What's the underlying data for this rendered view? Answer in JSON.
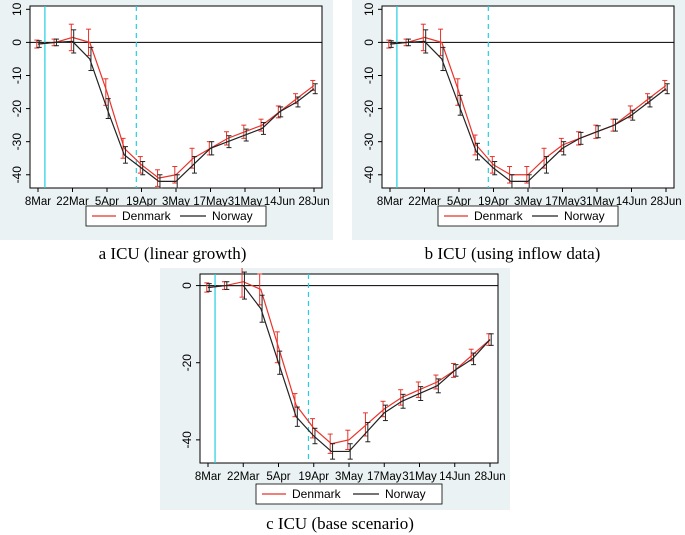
{
  "colors": {
    "panel_bg": "#eaf2f3",
    "plot_bg": "#ffffff",
    "denmark": "#e8332a",
    "norway": "#222222",
    "vline": "#1fd0e0",
    "zero_line": "#000000",
    "grid": "#eef3f4"
  },
  "legend_labels": {
    "denmark": "Denmark",
    "norway": "Norway"
  },
  "chart_data": [
    {
      "type": "line",
      "caption": "a ICU (linear growth)",
      "x": [
        "8Mar",
        "22Mar",
        "5Apr",
        "19Apr",
        "3May",
        "17May",
        "31May",
        "14Jun",
        "28Jun"
      ],
      "yticks": [
        10,
        0,
        -10,
        -20,
        -30,
        -40
      ],
      "ylim": [
        -44,
        11
      ],
      "legend": "bottom",
      "vlines": [
        {
          "x": 0.2,
          "style": "solid"
        },
        {
          "x": 2.85,
          "style": "dashed"
        }
      ],
      "series": [
        {
          "name": "Denmark",
          "x": [
            0,
            0.5,
            1,
            1.5,
            2,
            2.5,
            3,
            3.5,
            4,
            4.5,
            5,
            5.5,
            6,
            6.5,
            7,
            7.5,
            8
          ],
          "y": [
            -0.5,
            0,
            1.5,
            0,
            -15,
            -32,
            -37,
            -41,
            -40,
            -35,
            -32,
            -29,
            -27,
            -25,
            -21,
            -17,
            -13
          ],
          "err": [
            1.2,
            1,
            4,
            4,
            4,
            3,
            2.5,
            2.5,
            2.5,
            3,
            2,
            2,
            2,
            1.8,
            1.8,
            1.5,
            1.5
          ]
        },
        {
          "name": "Norway",
          "x": [
            0,
            0.5,
            1,
            1.5,
            2,
            2.5,
            3,
            3.5,
            4,
            4.5,
            5,
            5.5,
            6,
            6.5,
            7,
            7.5,
            8
          ],
          "y": [
            -0.5,
            0,
            0.3,
            -5,
            -20,
            -34,
            -38,
            -42,
            -42,
            -37,
            -32,
            -30,
            -28,
            -26,
            -21,
            -18,
            -14
          ],
          "err": [
            1,
            1,
            3.5,
            3.5,
            3,
            2.5,
            2,
            2,
            2,
            2.5,
            2,
            1.8,
            1.8,
            1.8,
            1.5,
            1.5,
            1.5
          ]
        }
      ]
    },
    {
      "type": "line",
      "caption": "b ICU (using inflow data)",
      "x": [
        "8Mar",
        "22Mar",
        "5Apr",
        "19Apr",
        "3May",
        "17May",
        "31May",
        "14Jun",
        "28Jun"
      ],
      "yticks": [
        10,
        0,
        -10,
        -20,
        -30,
        -40
      ],
      "ylim": [
        -44,
        11
      ],
      "legend": "bottom",
      "vlines": [
        {
          "x": 0.2,
          "style": "solid"
        },
        {
          "x": 2.85,
          "style": "dashed"
        }
      ],
      "series": [
        {
          "name": "Denmark",
          "x": [
            0,
            0.5,
            1,
            1.5,
            2,
            2.5,
            3,
            3.5,
            4,
            4.5,
            5,
            5.5,
            6,
            6.5,
            7,
            7.5,
            8
          ],
          "y": [
            -0.5,
            0,
            1.5,
            0,
            -15,
            -31,
            -37,
            -40,
            -40,
            -35,
            -31,
            -29,
            -27,
            -25,
            -21,
            -17,
            -13
          ],
          "err": [
            1.2,
            1,
            4,
            4,
            4,
            3,
            2.5,
            2.5,
            2.5,
            3,
            2,
            2,
            2,
            1.8,
            1.8,
            1.5,
            1.5
          ]
        },
        {
          "name": "Norway",
          "x": [
            0,
            0.5,
            1,
            1.5,
            2,
            2.5,
            3,
            3.5,
            4,
            4.5,
            5,
            5.5,
            6,
            6.5,
            7,
            7.5,
            8
          ],
          "y": [
            -0.5,
            0,
            0.3,
            -5,
            -19,
            -33,
            -38,
            -42,
            -42,
            -37,
            -32,
            -29,
            -27,
            -25,
            -22,
            -18,
            -14
          ],
          "err": [
            1,
            1,
            3.5,
            3.5,
            3,
            2.5,
            2,
            2,
            2,
            2.5,
            2,
            1.8,
            1.8,
            1.8,
            1.5,
            1.5,
            1.5
          ]
        }
      ]
    },
    {
      "type": "line",
      "caption": "c ICU (base scenario)",
      "x": [
        "8Mar",
        "22Mar",
        "5Apr",
        "19Apr",
        "3May",
        "17May",
        "31May",
        "14Jun",
        "28Jun"
      ],
      "yticks": [
        0,
        -20,
        -40
      ],
      "ylim": [
        -46,
        3
      ],
      "legend": "bottom",
      "vlines": [
        {
          "x": 0.2,
          "style": "solid"
        },
        {
          "x": 2.85,
          "style": "dashed"
        }
      ],
      "series": [
        {
          "name": "Denmark",
          "x": [
            0,
            0.5,
            1,
            1.5,
            2,
            2.5,
            3,
            3.5,
            4,
            4.5,
            5,
            5.5,
            6,
            6.5,
            7,
            7.5,
            8
          ],
          "y": [
            -0.5,
            0,
            1,
            -1,
            -16,
            -31,
            -37,
            -41,
            -40,
            -36,
            -32,
            -29,
            -27,
            -25,
            -22,
            -18,
            -14
          ],
          "err": [
            1.2,
            1,
            4,
            4,
            4,
            3,
            2.5,
            2.5,
            2.5,
            3,
            2,
            2,
            2,
            1.8,
            1.8,
            1.5,
            1.5
          ]
        },
        {
          "name": "Norway",
          "x": [
            0,
            0.5,
            1,
            1.5,
            2,
            2.5,
            3,
            3.5,
            4,
            4.5,
            5,
            5.5,
            6,
            6.5,
            7,
            7.5,
            8
          ],
          "y": [
            -0.5,
            0,
            0,
            -6,
            -20,
            -34,
            -39,
            -43,
            -43,
            -38,
            -33,
            -30,
            -28,
            -26,
            -22,
            -19,
            -14
          ],
          "err": [
            1,
            1,
            3.5,
            3.5,
            3,
            2.5,
            2,
            2,
            2,
            2.5,
            2,
            1.8,
            1.8,
            1.8,
            1.5,
            1.5,
            1.5
          ]
        }
      ]
    }
  ]
}
